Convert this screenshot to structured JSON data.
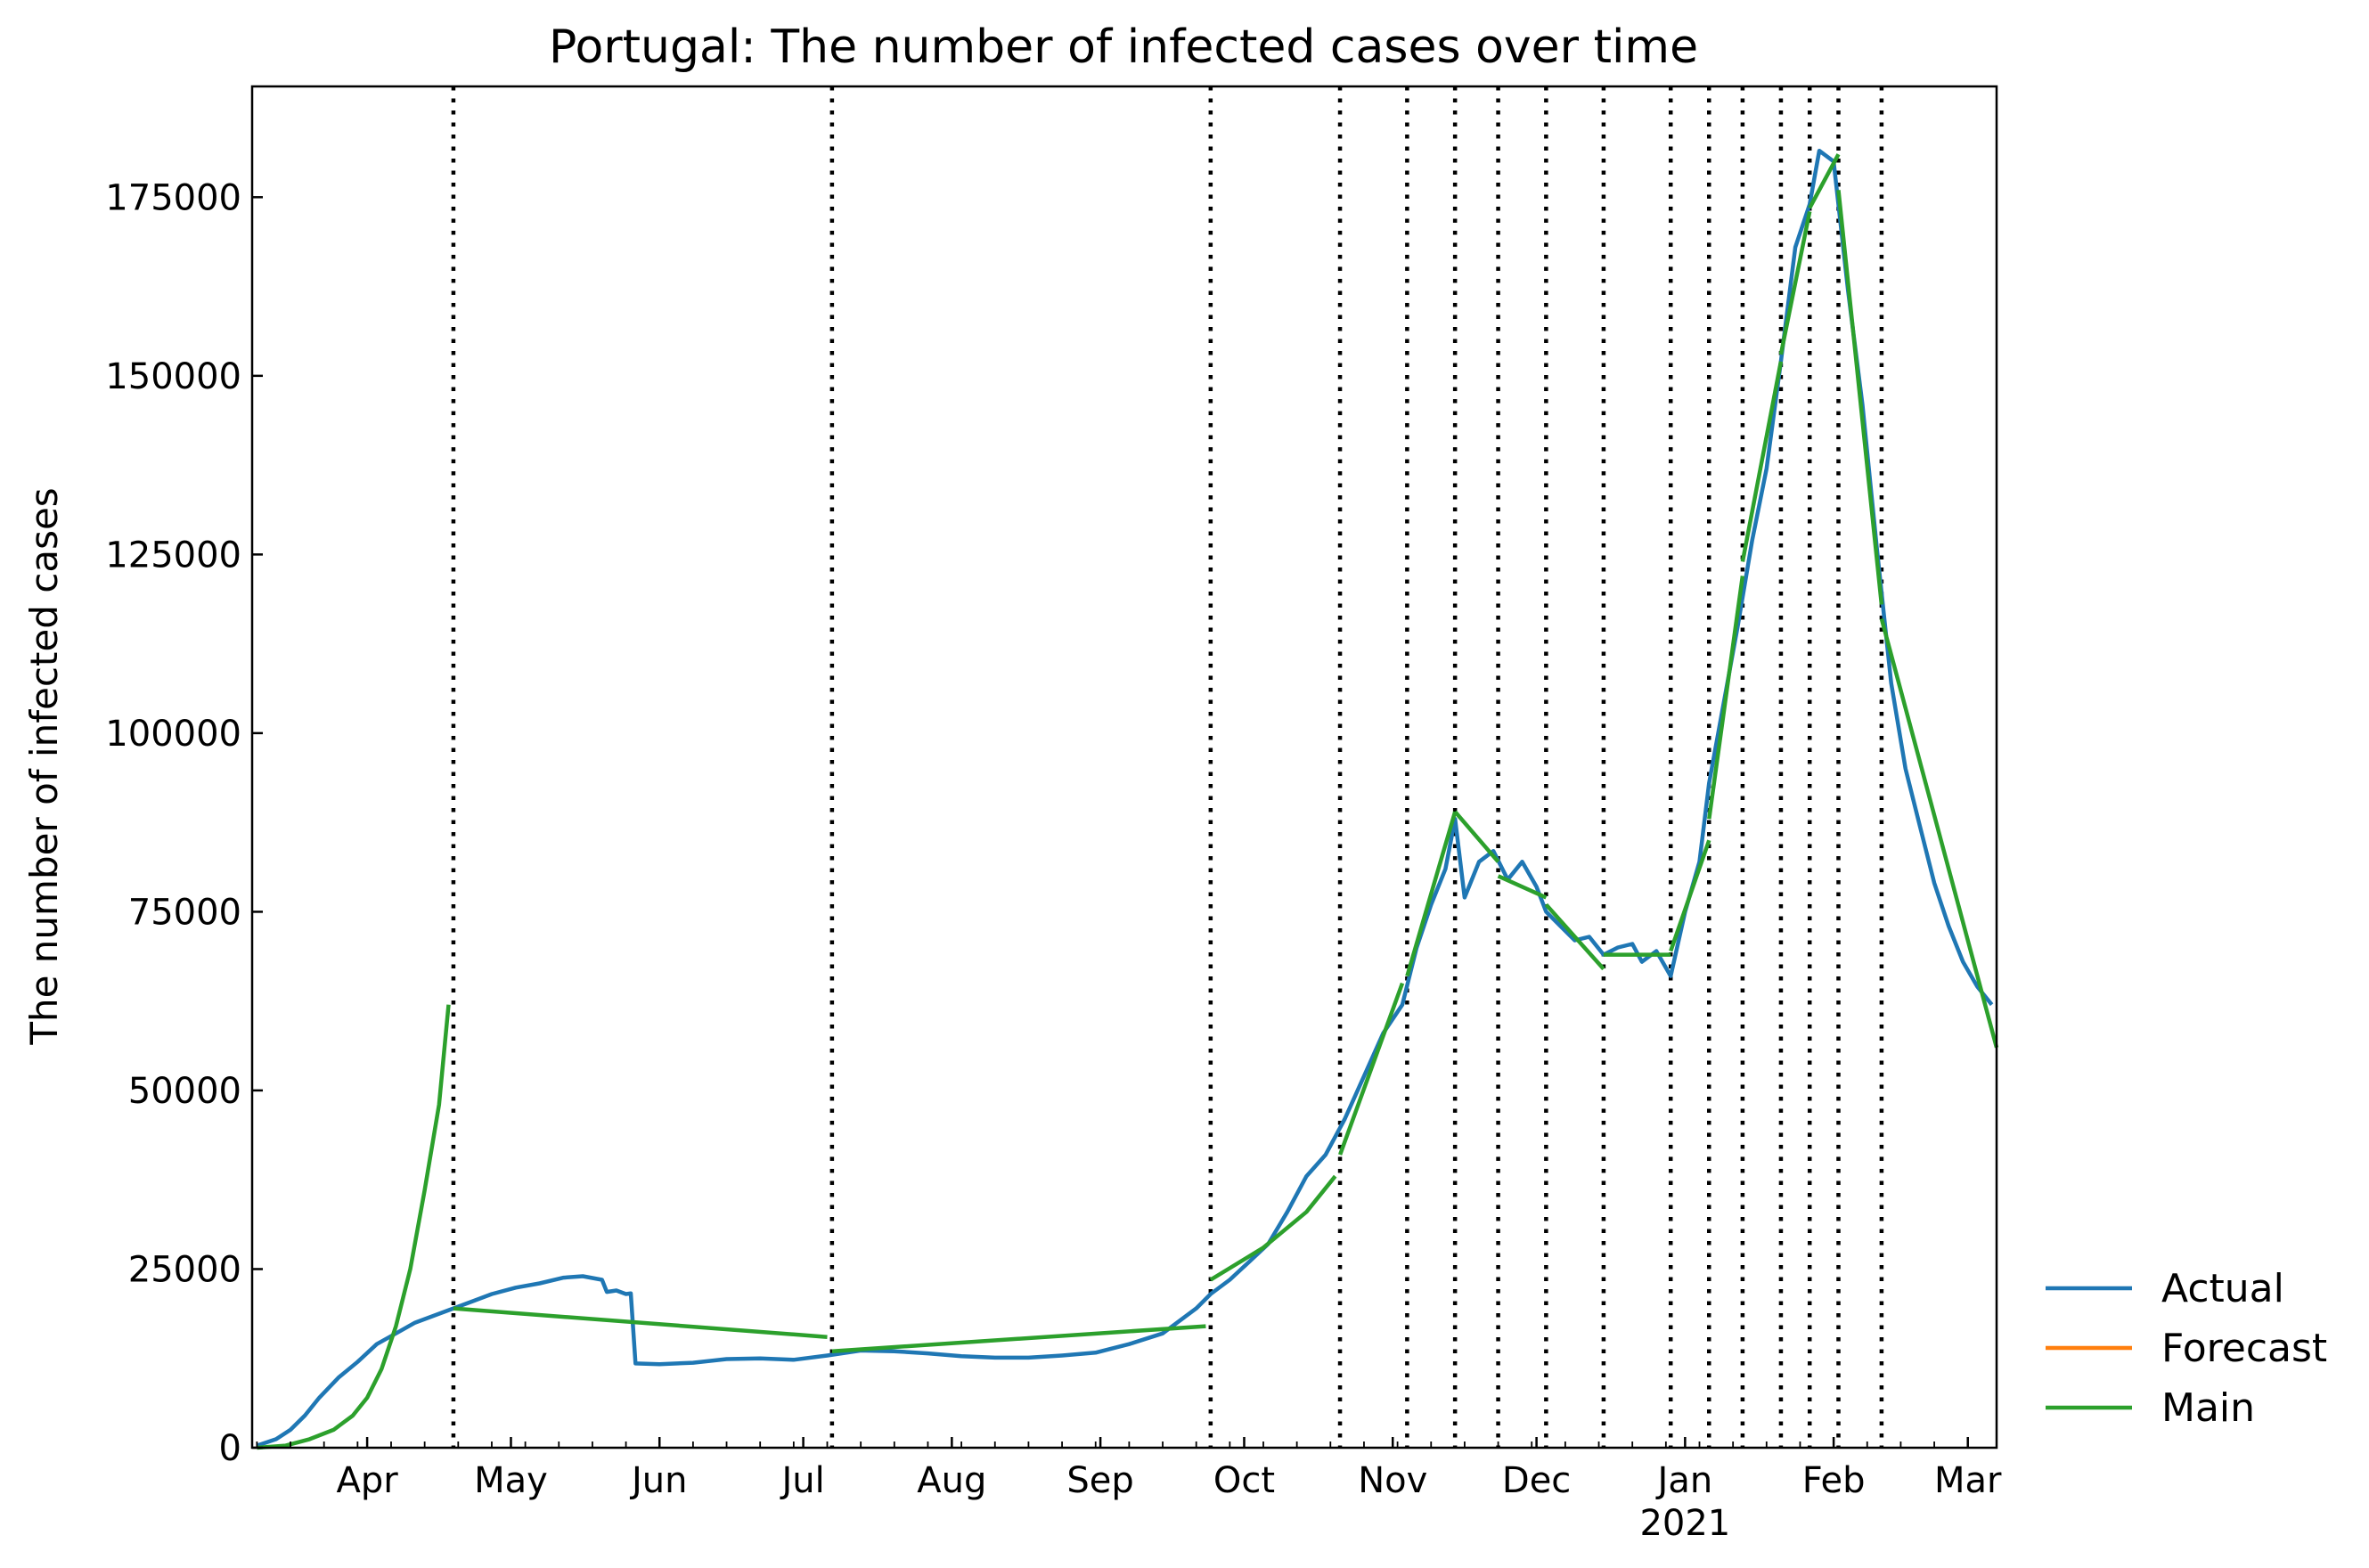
{
  "chart_data": {
    "type": "line",
    "title": "Portugal: The number of infected cases over time",
    "xlabel": "",
    "ylabel": "The number of infected cases",
    "x_axis": "date",
    "xlim": [
      "2020-03-08",
      "2021-03-07"
    ],
    "ylim": [
      0,
      190500
    ],
    "y_ticks": [
      0,
      25000,
      50000,
      75000,
      100000,
      125000,
      150000,
      175000
    ],
    "x_ticks": [
      {
        "date": "2020-04-01",
        "label": "Apr"
      },
      {
        "date": "2020-05-01",
        "label": "May"
      },
      {
        "date": "2020-06-01",
        "label": "Jun"
      },
      {
        "date": "2020-07-01",
        "label": "Jul"
      },
      {
        "date": "2020-08-01",
        "label": "Aug"
      },
      {
        "date": "2020-09-01",
        "label": "Sep"
      },
      {
        "date": "2020-10-01",
        "label": "Oct"
      },
      {
        "date": "2020-11-01",
        "label": "Nov"
      },
      {
        "date": "2020-12-01",
        "label": "Dec"
      },
      {
        "date": "2021-01-01",
        "label": "Jan",
        "sublabel": "2021"
      },
      {
        "date": "2021-02-01",
        "label": "Feb"
      },
      {
        "date": "2021-03-01",
        "label": "Mar"
      }
    ],
    "grid": false,
    "legend_position": "outside right bottom",
    "change_points": [
      "2020-04-19",
      "2020-07-07",
      "2020-09-24",
      "2020-10-21",
      "2020-11-04",
      "2020-11-14",
      "2020-11-23",
      "2020-12-03",
      "2020-12-15",
      "2020-12-29",
      "2021-01-06",
      "2021-01-13",
      "2021-01-21",
      "2021-01-27",
      "2021-02-02",
      "2021-02-11"
    ],
    "series": [
      {
        "name": "Actual",
        "color": "#1f77b4",
        "points": [
          [
            "2020-03-09",
            300
          ],
          [
            "2020-03-13",
            1200
          ],
          [
            "2020-03-16",
            2500
          ],
          [
            "2020-03-19",
            4500
          ],
          [
            "2020-03-22",
            7000
          ],
          [
            "2020-03-26",
            9800
          ],
          [
            "2020-03-30",
            12000
          ],
          [
            "2020-04-03",
            14500
          ],
          [
            "2020-04-07",
            16000
          ],
          [
            "2020-04-11",
            17500
          ],
          [
            "2020-04-15",
            18500
          ],
          [
            "2020-04-19",
            19500
          ],
          [
            "2020-04-23",
            20500
          ],
          [
            "2020-04-27",
            21500
          ],
          [
            "2020-05-02",
            22400
          ],
          [
            "2020-05-07",
            23000
          ],
          [
            "2020-05-12",
            23800
          ],
          [
            "2020-05-16",
            24000
          ],
          [
            "2020-05-20",
            23500
          ],
          [
            "2020-05-21",
            21800
          ],
          [
            "2020-05-23",
            22000
          ],
          [
            "2020-05-25",
            21500
          ],
          [
            "2020-05-26",
            21600
          ],
          [
            "2020-05-27",
            11800
          ],
          [
            "2020-06-01",
            11700
          ],
          [
            "2020-06-08",
            11900
          ],
          [
            "2020-06-15",
            12400
          ],
          [
            "2020-06-22",
            12500
          ],
          [
            "2020-06-29",
            12300
          ],
          [
            "2020-07-06",
            12900
          ],
          [
            "2020-07-13",
            13600
          ],
          [
            "2020-07-20",
            13500
          ],
          [
            "2020-07-27",
            13200
          ],
          [
            "2020-08-03",
            12800
          ],
          [
            "2020-08-10",
            12600
          ],
          [
            "2020-08-17",
            12600
          ],
          [
            "2020-08-24",
            12900
          ],
          [
            "2020-08-31",
            13300
          ],
          [
            "2020-09-07",
            14500
          ],
          [
            "2020-09-14",
            16000
          ],
          [
            "2020-09-21",
            19500
          ],
          [
            "2020-09-24",
            21500
          ],
          [
            "2020-09-28",
            23500
          ],
          [
            "2020-10-02",
            26000
          ],
          [
            "2020-10-06",
            28500
          ],
          [
            "2020-10-10",
            33000
          ],
          [
            "2020-10-14",
            38000
          ],
          [
            "2020-10-18",
            41000
          ],
          [
            "2020-10-22",
            46000
          ],
          [
            "2020-10-26",
            52000
          ],
          [
            "2020-10-30",
            58000
          ],
          [
            "2020-11-03",
            62000
          ],
          [
            "2020-11-06",
            70000
          ],
          [
            "2020-11-09",
            76000
          ],
          [
            "2020-11-12",
            81000
          ],
          [
            "2020-11-14",
            88000
          ],
          [
            "2020-11-16",
            77000
          ],
          [
            "2020-11-19",
            82000
          ],
          [
            "2020-11-22",
            83500
          ],
          [
            "2020-11-25",
            79500
          ],
          [
            "2020-11-28",
            82000
          ],
          [
            "2020-12-01",
            78500
          ],
          [
            "2020-12-03",
            75000
          ],
          [
            "2020-12-06",
            73000
          ],
          [
            "2020-12-09",
            71000
          ],
          [
            "2020-12-12",
            71500
          ],
          [
            "2020-12-15",
            69000
          ],
          [
            "2020-12-18",
            70000
          ],
          [
            "2020-12-21",
            70500
          ],
          [
            "2020-12-23",
            68000
          ],
          [
            "2020-12-26",
            69500
          ],
          [
            "2020-12-29",
            66000
          ],
          [
            "2021-01-01",
            75000
          ],
          [
            "2021-01-04",
            82000
          ],
          [
            "2021-01-06",
            93000
          ],
          [
            "2021-01-09",
            104000
          ],
          [
            "2021-01-12",
            115000
          ],
          [
            "2021-01-15",
            127000
          ],
          [
            "2021-01-18",
            137000
          ],
          [
            "2021-01-21",
            152000
          ],
          [
            "2021-01-24",
            168000
          ],
          [
            "2021-01-27",
            174000
          ],
          [
            "2021-01-29",
            181500
          ],
          [
            "2021-02-01",
            180000
          ],
          [
            "2021-02-04",
            162000
          ],
          [
            "2021-02-07",
            146000
          ],
          [
            "2021-02-10",
            126000
          ],
          [
            "2021-02-13",
            107000
          ],
          [
            "2021-02-16",
            95000
          ],
          [
            "2021-02-19",
            87000
          ],
          [
            "2021-02-22",
            79000
          ],
          [
            "2021-02-25",
            73000
          ],
          [
            "2021-02-28",
            68000
          ],
          [
            "2021-03-03",
            64500
          ],
          [
            "2021-03-06",
            62000
          ]
        ]
      },
      {
        "name": "Forecast",
        "color": "#ff7f0e",
        "points": []
      },
      {
        "name": "Main",
        "color": "#2ca02c",
        "segments": [
          [
            [
              "2020-03-09",
              0
            ],
            [
              "2020-03-15",
              300
            ],
            [
              "2020-03-20",
              1200
            ],
            [
              "2020-03-25",
              2500
            ],
            [
              "2020-03-29",
              4500
            ],
            [
              "2020-04-01",
              7000
            ],
            [
              "2020-04-04",
              11000
            ],
            [
              "2020-04-07",
              17000
            ],
            [
              "2020-04-10",
              25000
            ],
            [
              "2020-04-13",
              36000
            ],
            [
              "2020-04-16",
              48000
            ],
            [
              "2020-04-18",
              62000
            ]
          ],
          [
            [
              "2020-04-19",
              19500
            ],
            [
              "2020-07-06",
              15500
            ]
          ],
          [
            [
              "2020-07-07",
              13500
            ],
            [
              "2020-09-23",
              17000
            ]
          ],
          [
            [
              "2020-09-24",
              23500
            ],
            [
              "2020-10-05",
              28000
            ],
            [
              "2020-10-14",
              33000
            ],
            [
              "2020-10-20",
              38000
            ]
          ],
          [
            [
              "2020-10-21",
              41000
            ],
            [
              "2020-11-03",
              65000
            ]
          ],
          [
            [
              "2020-11-04",
              66000
            ],
            [
              "2020-11-14",
              89000
            ]
          ],
          [
            [
              "2020-11-14",
              89000
            ],
            [
              "2020-11-23",
              82000
            ]
          ],
          [
            [
              "2020-11-23",
              80000
            ],
            [
              "2020-12-03",
              77000
            ]
          ],
          [
            [
              "2020-12-03",
              76000
            ],
            [
              "2020-12-15",
              67000
            ]
          ],
          [
            [
              "2020-12-15",
              69000
            ],
            [
              "2020-12-29",
              69000
            ]
          ],
          [
            [
              "2020-12-29",
              69500
            ],
            [
              "2021-01-06",
              85000
            ]
          ],
          [
            [
              "2021-01-06",
              88000
            ],
            [
              "2021-01-13",
              122000
            ]
          ],
          [
            [
              "2021-01-13",
              124000
            ],
            [
              "2021-01-21",
              152000
            ]
          ],
          [
            [
              "2021-01-21",
              153000
            ],
            [
              "2021-01-27",
              173000
            ]
          ],
          [
            [
              "2021-01-27",
              173500
            ],
            [
              "2021-02-02",
              181000
            ]
          ],
          [
            [
              "2021-02-02",
              176000
            ],
            [
              "2021-02-11",
              118000
            ]
          ],
          [
            [
              "2021-02-11",
              116000
            ],
            [
              "2021-03-07",
              56000
            ]
          ]
        ]
      }
    ]
  }
}
